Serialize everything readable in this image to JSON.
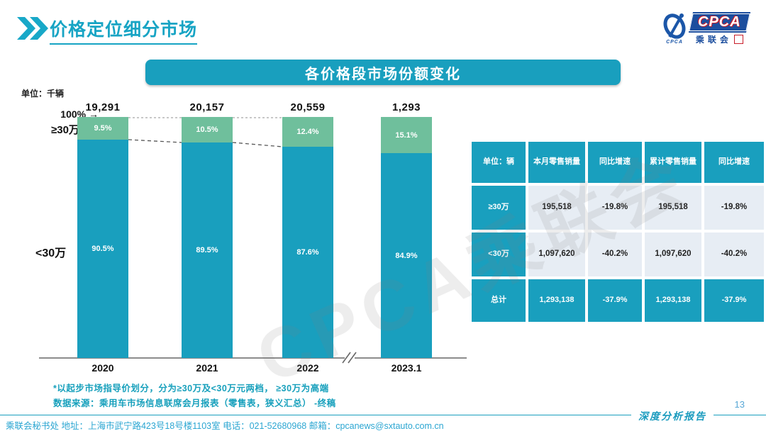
{
  "page": {
    "title": "价格定位细分市场",
    "banner": "各价格段市场份额变化",
    "page_number": "13",
    "report_label": "深度分析报告",
    "watermark": "CPCA乘联会",
    "footer": "乘联会秘书处   地址：上海市武宁路423号18号楼1103室   电话：021-52680968   邮箱：cpcanews@sxtauto.com.cn"
  },
  "logo": {
    "acronym": "CPCA",
    "caption": "CPCA",
    "sub": "乘联会",
    "seal": "会"
  },
  "chart_data": {
    "type": "bar",
    "stacked": true,
    "title": "各价格段市场份额变化",
    "unit_label": "单位：千辆",
    "categories": [
      "2020",
      "2021",
      "2022",
      "2023.1"
    ],
    "totals": [
      "19,291",
      "20,157",
      "20,559",
      "1,293"
    ],
    "series": [
      {
        "name": "≥30万",
        "color": "#6FBF9C",
        "values": [
          9.5,
          10.5,
          12.4,
          15.1
        ],
        "labels": [
          "9.5%",
          "10.5%",
          "12.4%",
          "15.1%"
        ]
      },
      {
        "name": "<30万",
        "color": "#199FBE",
        "values": [
          90.5,
          89.5,
          87.6,
          84.9
        ],
        "labels": [
          "90.5%",
          "89.5%",
          "87.6%",
          "84.9%"
        ]
      }
    ],
    "annotations": {
      "top_label": "100% →",
      "top_series": "≥30万",
      "bottom_series": "<30万"
    },
    "ylim": [
      0,
      100
    ],
    "axis_break_between": [
      "2022",
      "2023.1"
    ],
    "legend_position": "left-annotations",
    "grid": false
  },
  "table": {
    "headers": [
      "单位：辆",
      "本月零售销量",
      "同比增速",
      "累计零售销量",
      "同比增速"
    ],
    "rows": [
      {
        "label": "≥30万",
        "cells": [
          "195,518",
          "-19.8%",
          "195,518",
          "-19.8%"
        ]
      },
      {
        "label": "<30万",
        "cells": [
          "1,097,620",
          "-40.2%",
          "1,097,620",
          "-40.2%"
        ]
      },
      {
        "label": "总计",
        "cells": [
          "1,293,138",
          "-37.9%",
          "1,293,138",
          "-37.9%"
        ]
      }
    ]
  },
  "notes": {
    "note1": "*以起步市场指导价划分，分为≥30万及<30万元两档， ≥30万为高端",
    "note2": "数据来源：乘用车市场信息联席会月报表（零售表，狭义汇总） -终稿"
  },
  "colors": {
    "teal": "#199FBE",
    "green": "#6FBF9C",
    "title_teal": "#17A4C4",
    "light_cell": "#E7EDF4",
    "footer_text": "#2BA6D2",
    "page_number": "#58A7D6",
    "logo_blue": "#1C4E9E",
    "logo_red": "#C81E2B"
  }
}
